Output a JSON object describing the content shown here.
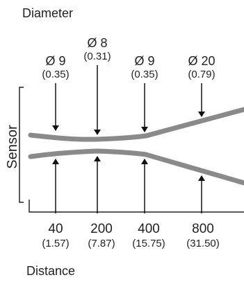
{
  "diameter_label": "Diameter",
  "distance_label": "Distance",
  "sensor_label": "Sensor",
  "colors": {
    "beam": "#8a8a8a",
    "text": "#222222",
    "arrow": "#111111"
  },
  "markers": [
    {
      "diameter": "Ø 9",
      "diameter_inch": "(0.35)",
      "distance": "40",
      "distance_inch": "(1.57)"
    },
    {
      "diameter": "Ø 8",
      "diameter_inch": "(0.31)",
      "distance": "200",
      "distance_inch": "(7.87)"
    },
    {
      "diameter": "Ø 9",
      "diameter_inch": "(0.35)",
      "distance": "400",
      "distance_inch": "(15.75)"
    },
    {
      "diameter": "Ø 20",
      "diameter_inch": "(0.79)",
      "distance": "800",
      "distance_inch": "(31.50)"
    }
  ]
}
